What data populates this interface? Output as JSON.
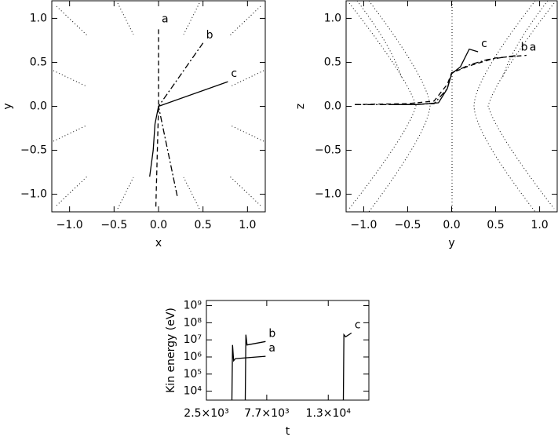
{
  "chart_data": [
    {
      "type": "line",
      "xlabel": "x",
      "ylabel": "y",
      "xlim": [
        -1.2,
        1.2
      ],
      "ylim": [
        -1.2,
        1.2
      ],
      "xticks": [
        {
          "value": -1,
          "label": "−1.0"
        },
        {
          "value": -0.5,
          "label": "−0.5"
        },
        {
          "value": 0,
          "label": "0.0"
        },
        0.5,
        {
          "value": 1,
          "label": "1.0"
        }
      ],
      "yticks": [
        {
          "value": -1,
          "label": "−1.0"
        },
        {
          "value": -0.5,
          "label": "−0.5"
        },
        {
          "value": 0,
          "label": "0.0"
        },
        0.5,
        {
          "value": 1,
          "label": "1.0"
        }
      ],
      "series": [
        {
          "name": "a",
          "color": "#000000",
          "line_style": "dashed",
          "x": [
            -0.03,
            0,
            0
          ],
          "values": [
            -1.14,
            0,
            0.9
          ]
        },
        {
          "name": "b",
          "color": "#000000",
          "line_style": "dashdot",
          "x": [
            0.21,
            0,
            0.5
          ],
          "values": [
            -1.02,
            0,
            0.72
          ]
        },
        {
          "name": "c",
          "color": "#000000",
          "line_style": "solid",
          "x": [
            -0.1,
            -0.06,
            -0.04,
            0,
            0.78
          ],
          "values": [
            -0.8,
            -0.5,
            -0.2,
            0,
            0.28
          ]
        }
      ]
    },
    {
      "type": "line",
      "xlabel": "y",
      "ylabel": "z",
      "xlim": [
        -1.2,
        1.2
      ],
      "ylim": [
        -1.2,
        1.2
      ],
      "xticks": [
        {
          "value": -1,
          "label": "−1.0"
        },
        {
          "value": -0.5,
          "label": "−0.5"
        },
        {
          "value": 0,
          "label": "0.0"
        },
        0.5,
        {
          "value": 1,
          "label": "1.0"
        }
      ],
      "yticks": [
        {
          "value": -1,
          "label": "−1.0"
        },
        {
          "value": -0.5,
          "label": "−0.5"
        },
        {
          "value": 0,
          "label": "0.0"
        },
        0.5,
        {
          "value": 1,
          "label": "1.0"
        }
      ],
      "series": [
        {
          "name": "a",
          "color": "#000000",
          "line_style": "dashed",
          "x": [
            -1.1,
            -0.5,
            -0.2,
            -0.05,
            0,
            0.2,
            0.5,
            0.85
          ],
          "values": [
            0.02,
            0.03,
            0.06,
            0.25,
            0.38,
            0.46,
            0.55,
            0.58
          ]
        },
        {
          "name": "b",
          "color": "#000000",
          "line_style": "dashdot",
          "x": [
            -1.1,
            -0.5,
            -0.2,
            -0.05,
            0,
            0.2,
            0.4,
            0.75
          ],
          "values": [
            0.02,
            0.02,
            0.03,
            0.2,
            0.38,
            0.47,
            0.53,
            0.58
          ]
        },
        {
          "name": "c",
          "color": "#000000",
          "line_style": "solid",
          "x": [
            -0.7,
            -0.4,
            -0.15,
            -0.05,
            0,
            0.1,
            0.2,
            0.3
          ],
          "values": [
            0.02,
            0.02,
            0.04,
            0.2,
            0.37,
            0.45,
            0.65,
            0.62
          ]
        }
      ]
    },
    {
      "type": "line",
      "xlabel": "t",
      "ylabel": "Kin energy (eV)",
      "ylog": true,
      "xlim": [
        2500,
        16500
      ],
      "ylim": [
        3000,
        2000000000
      ],
      "xticks": [
        {
          "value": 2500,
          "label": "2.5×10³"
        },
        {
          "value": 7700,
          "label": "7.7×10³"
        },
        {
          "value": 13000,
          "label": "1.3×10⁴"
        }
      ],
      "yticks": [
        {
          "value": 10000,
          "label": "10⁴"
        },
        {
          "value": 100000,
          "label": "10⁵"
        },
        {
          "value": 1000000,
          "label": "10⁶"
        },
        {
          "value": 10000000,
          "label": "10⁷"
        },
        {
          "value": 100000000,
          "label": "10⁸"
        },
        {
          "value": 1000000000,
          "label": "10⁹"
        }
      ],
      "series": [
        {
          "name": "a",
          "color": "#000000",
          "line_style": "solid",
          "x": [
            4700,
            4750,
            4850,
            5000,
            7600
          ],
          "values": [
            3000,
            5000000,
            600000,
            800000,
            1100000
          ]
        },
        {
          "name": "b",
          "color": "#000000",
          "line_style": "solid",
          "x": [
            5850,
            5900,
            6000,
            7600
          ],
          "values": [
            3000,
            20000000,
            5000000,
            8000000
          ]
        },
        {
          "name": "c",
          "color": "#000000",
          "line_style": "solid",
          "x": [
            14300,
            14350,
            14500,
            15000
          ],
          "values": [
            3000,
            20000000,
            15000000,
            25000000
          ]
        }
      ]
    }
  ]
}
